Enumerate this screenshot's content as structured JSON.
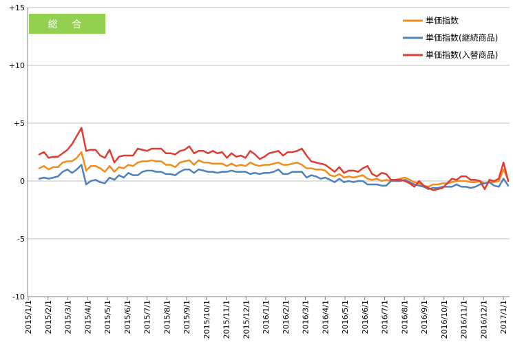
{
  "chart_data": {
    "type": "line",
    "badge": "総 合",
    "badge_color": "#92D050",
    "ylim": [
      -10,
      15
    ],
    "y_ticks": [
      {
        "value": 15,
        "label": "+15"
      },
      {
        "value": 10,
        "label": "+10"
      },
      {
        "value": 5,
        "label": "+5"
      },
      {
        "value": 0,
        "label": "0"
      },
      {
        "value": -5,
        "label": "-5"
      },
      {
        "value": -10,
        "label": "-10"
      }
    ],
    "grid": "horizontal",
    "legend": "top-right",
    "x_tick_labels": [
      "2015/1/1",
      "2015/2/1",
      "2015/3/1",
      "2015/4/1",
      "2015/5/1",
      "2015/6/1",
      "2015/7/1",
      "2015/8/1",
      "2015/9/1",
      "2015/10/1",
      "2015/11/1",
      "2015/12/1",
      "2016/1/1",
      "2016/2/1",
      "2016/3/1",
      "2016/4/1",
      "2016/5/1",
      "2016/6/1",
      "2016/7/1",
      "2016/8/1",
      "2016/9/1",
      "2016/10/1",
      "2016/11/1",
      "2016/12/1",
      "2017/1/1"
    ],
    "series": [
      {
        "name": "単価指数",
        "color": "#F28C1C",
        "values": [
          1.1,
          1.3,
          1.0,
          1.2,
          1.2,
          1.6,
          1.7,
          1.7,
          2.0,
          2.5,
          0.9,
          1.3,
          1.3,
          1.1,
          0.8,
          1.3,
          0.8,
          1.2,
          1.1,
          1.4,
          1.3,
          1.6,
          1.7,
          1.7,
          1.8,
          1.7,
          1.7,
          1.4,
          1.4,
          1.2,
          1.6,
          1.7,
          1.8,
          1.4,
          1.8,
          1.6,
          1.6,
          1.5,
          1.5,
          1.5,
          1.3,
          1.5,
          1.3,
          1.4,
          1.3,
          1.6,
          1.4,
          1.3,
          1.4,
          1.4,
          1.5,
          1.6,
          1.4,
          1.4,
          1.5,
          1.6,
          1.4,
          1.1,
          1.1,
          1.0,
          1.0,
          0.9,
          0.5,
          0.4,
          0.6,
          0.3,
          0.4,
          0.3,
          0.4,
          0.5,
          0.2,
          0.1,
          0.2,
          0.0,
          0.1,
          0.0,
          0.1,
          0.2,
          0.3,
          0.1,
          -0.1,
          -0.2,
          -0.4,
          -0.5,
          -0.3,
          -0.3,
          -0.2,
          -0.2,
          -0.1,
          0.0,
          0.0,
          0.0,
          -0.1,
          -0.1,
          0.0,
          -0.2,
          -0.1,
          -0.1,
          0.0,
          1.0,
          0.1
        ]
      },
      {
        "name": "単価指数(継続商品)",
        "color": "#4F81BD",
        "values": [
          0.2,
          0.3,
          0.2,
          0.3,
          0.4,
          0.8,
          1.0,
          0.7,
          1.0,
          1.4,
          -0.3,
          0.0,
          0.1,
          -0.1,
          -0.2,
          0.3,
          0.1,
          0.5,
          0.3,
          0.7,
          0.5,
          0.5,
          0.8,
          0.9,
          0.9,
          0.8,
          0.8,
          0.6,
          0.6,
          0.5,
          0.8,
          1.0,
          1.0,
          0.7,
          1.0,
          0.9,
          0.8,
          0.8,
          0.7,
          0.8,
          0.8,
          0.9,
          0.8,
          0.8,
          0.8,
          0.6,
          0.7,
          0.6,
          0.7,
          0.7,
          0.8,
          1.0,
          0.6,
          0.6,
          0.8,
          0.8,
          0.8,
          0.3,
          0.5,
          0.4,
          0.2,
          0.3,
          0.1,
          -0.1,
          0.2,
          -0.1,
          0.0,
          -0.1,
          0.0,
          0.0,
          -0.3,
          -0.3,
          -0.3,
          -0.4,
          -0.4,
          0.0,
          0.0,
          0.0,
          0.1,
          -0.1,
          -0.3,
          -0.4,
          -0.5,
          -0.7,
          -0.6,
          -0.6,
          -0.5,
          -0.5,
          -0.5,
          -0.3,
          -0.5,
          -0.5,
          -0.6,
          -0.5,
          -0.3,
          -0.2,
          -0.1,
          -0.4,
          -0.5,
          0.2,
          -0.4
        ]
      },
      {
        "name": "単価指数(入替商品)",
        "color": "#E03C31",
        "values": [
          2.3,
          2.5,
          2.0,
          2.1,
          2.1,
          2.4,
          2.7,
          3.2,
          3.9,
          4.6,
          2.6,
          2.7,
          2.7,
          2.2,
          2.0,
          2.7,
          1.6,
          2.1,
          2.2,
          2.2,
          2.2,
          2.8,
          2.7,
          2.6,
          2.8,
          2.8,
          2.8,
          2.4,
          2.4,
          2.3,
          2.6,
          2.7,
          3.0,
          2.4,
          2.6,
          2.6,
          2.4,
          2.6,
          2.4,
          2.5,
          2.0,
          2.4,
          2.1,
          2.2,
          2.0,
          2.6,
          2.3,
          1.9,
          2.1,
          2.4,
          2.5,
          2.6,
          2.2,
          2.5,
          2.5,
          2.6,
          2.8,
          2.2,
          1.7,
          1.6,
          1.5,
          1.4,
          1.1,
          0.8,
          1.2,
          0.7,
          0.9,
          0.9,
          0.8,
          1.1,
          1.3,
          0.6,
          0.4,
          0.7,
          0.6,
          0.1,
          0.1,
          0.1,
          0.0,
          -0.2,
          -0.5,
          0.0,
          -0.4,
          -0.6,
          -0.8,
          -0.7,
          -0.6,
          -0.2,
          0.2,
          0.1,
          0.4,
          0.4,
          0.1,
          0.1,
          0.0,
          -0.7,
          0.1,
          0.0,
          0.2,
          1.6,
          0.0
        ]
      }
    ]
  }
}
